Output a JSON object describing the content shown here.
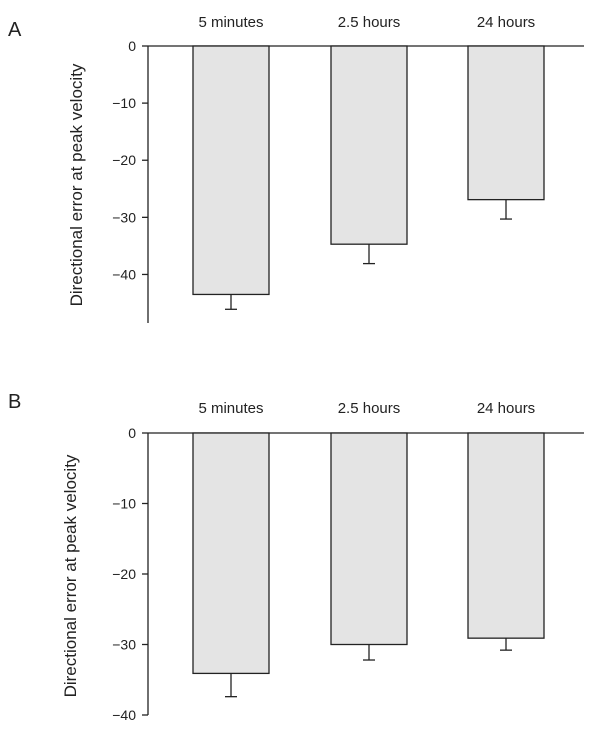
{
  "colors": {
    "bar_fill": "#e4e4e4",
    "stroke": "#222222"
  },
  "chart_data": [
    {
      "type": "bar",
      "panel": "A",
      "categories": [
        "5 minutes",
        "2.5 hours",
        "24 hours"
      ],
      "values": [
        -43.5,
        -34.7,
        -26.9
      ],
      "errors": [
        2.6,
        3.4,
        3.4
      ],
      "ylabel": "Directional error at peak velocity",
      "yticks": [
        0,
        -10,
        -20,
        -30,
        -40
      ],
      "ylim": [
        -48.5,
        0
      ],
      "grid": false
    },
    {
      "type": "bar",
      "panel": "B",
      "categories": [
        "5 minutes",
        "2.5 hours",
        "24 hours"
      ],
      "values": [
        -34.1,
        -30.0,
        -29.1
      ],
      "errors": [
        3.3,
        2.2,
        1.7
      ],
      "ylabel": "Directional error at peak velocity",
      "yticks": [
        0,
        -10,
        -20,
        -30,
        -40
      ],
      "ylim": [
        -40,
        0
      ],
      "grid": false
    }
  ]
}
